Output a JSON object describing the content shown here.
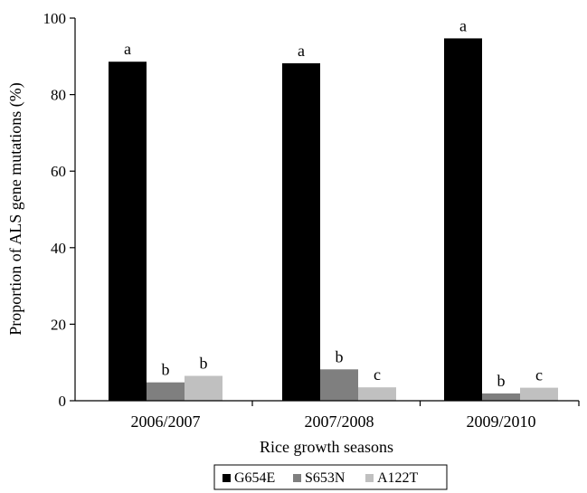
{
  "chart_data": {
    "type": "bar",
    "title": "",
    "xlabel": "Rice growth seasons",
    "ylabel": "Proportion of ALS gene mutations (%)",
    "ylim": [
      0,
      100
    ],
    "yticks": [
      0,
      20,
      40,
      60,
      80,
      100
    ],
    "categories": [
      "2006/2007",
      "2007/2008",
      "2009/2010"
    ],
    "series": [
      {
        "name": "G654E",
        "color": "#000000",
        "values": [
          88.6,
          88.2,
          94.7
        ],
        "letters": [
          "a",
          "a",
          "a"
        ]
      },
      {
        "name": "S653N",
        "color": "#7f7f7f",
        "values": [
          4.8,
          8.2,
          1.9
        ],
        "letters": [
          "b",
          "b",
          "b"
        ]
      },
      {
        "name": "A122T",
        "color": "#c0c0c0",
        "values": [
          6.5,
          3.5,
          3.4
        ],
        "letters": [
          "b",
          "c",
          "c"
        ]
      }
    ],
    "legend_position": "bottom-center",
    "grid": false
  }
}
